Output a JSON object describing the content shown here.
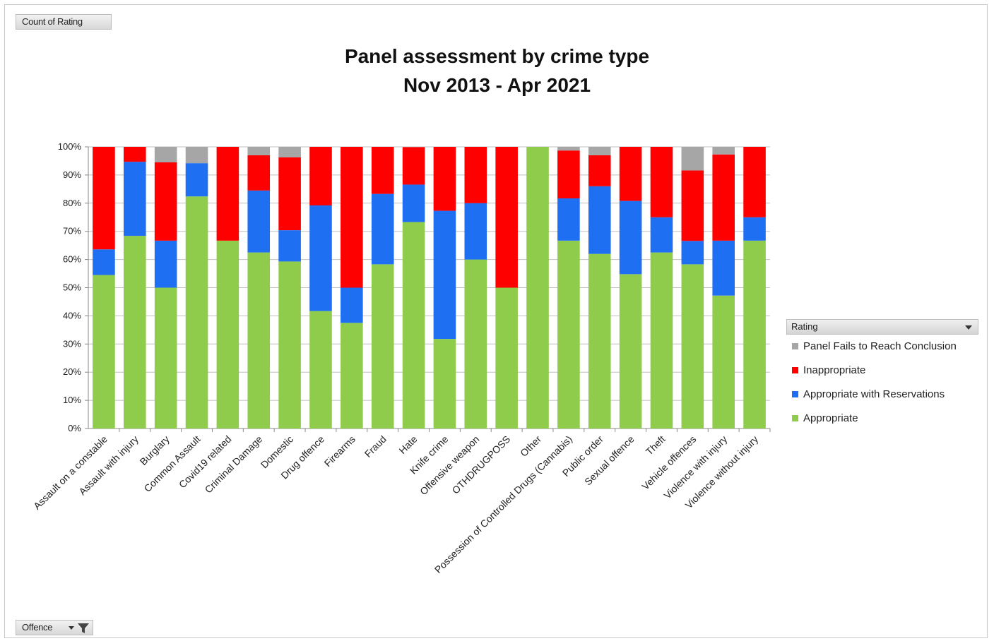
{
  "field_buttons": {
    "values_field": "Count of Rating",
    "axis_field": "Offence"
  },
  "icons": {
    "axis_filter": "filter-icon",
    "dropdown": "chevron-down-icon"
  },
  "colors": {
    "Panel Fails to Reach Conclusion": "#a6a6a6",
    "Inappropriate": "#ff0000",
    "Appropriate with Reservations": "#1f6ff2",
    "Appropriate": "#8fcc4c"
  },
  "chart_data": {
    "type": "bar",
    "stacked": true,
    "percent_stacked": true,
    "title": "Panel assessment by crime type",
    "subtitle": "Nov 2013 - Apr 2021",
    "xlabel": "",
    "ylabel": "",
    "ylim": [
      0,
      100
    ],
    "yticks": [
      "0%",
      "10%",
      "20%",
      "30%",
      "40%",
      "50%",
      "60%",
      "70%",
      "80%",
      "90%",
      "100%"
    ],
    "grid": true,
    "legend_title": "Rating",
    "legend_position": "right",
    "categories": [
      "Assault on a constable",
      "Assault with injury",
      "Burglary",
      "Common Assault",
      "Covid19 related",
      "Criminal Damage",
      "Domestic",
      "Drug offence",
      "Firearms",
      "Fraud",
      "Hate",
      "Knife crime",
      "Offensive weapon",
      "OTHDRUGPOSS",
      "Other",
      "Possession of Controlled Drugs (Cannabis)",
      "Public order",
      "Sexual offence",
      "Theft",
      "Vehicle offences",
      "Violence with injury",
      "Violence without injury"
    ],
    "series": [
      {
        "name": "Appropriate",
        "values": [
          54.5,
          68.4,
          50,
          82.4,
          66.7,
          62.5,
          59.3,
          41.7,
          37.5,
          58.3,
          73.3,
          31.8,
          60,
          50,
          100,
          66.7,
          62,
          54.8,
          62.5,
          58.3,
          47.2,
          66.7
        ]
      },
      {
        "name": "Appropriate with Reservations",
        "values": [
          9.1,
          26.3,
          16.7,
          11.8,
          0,
          22,
          11.1,
          37.5,
          12.5,
          25,
          13.3,
          45.5,
          20,
          0,
          0,
          15,
          24,
          26,
          12.5,
          8.3,
          19.5,
          8.3
        ]
      },
      {
        "name": "Inappropriate",
        "values": [
          36.4,
          5.3,
          27.8,
          0,
          33.3,
          12.5,
          25.9,
          20.8,
          50,
          16.7,
          13.3,
          22.7,
          20,
          50,
          0,
          17,
          11,
          19.2,
          25,
          25,
          30.6,
          25
        ]
      },
      {
        "name": "Panel Fails to Reach Conclusion",
        "values": [
          0,
          0,
          5.5,
          5.8,
          0,
          3,
          3.7,
          0,
          0,
          0,
          0,
          0,
          0,
          0,
          0,
          1.3,
          3,
          0,
          0,
          8.4,
          2.7,
          0
        ]
      }
    ]
  }
}
